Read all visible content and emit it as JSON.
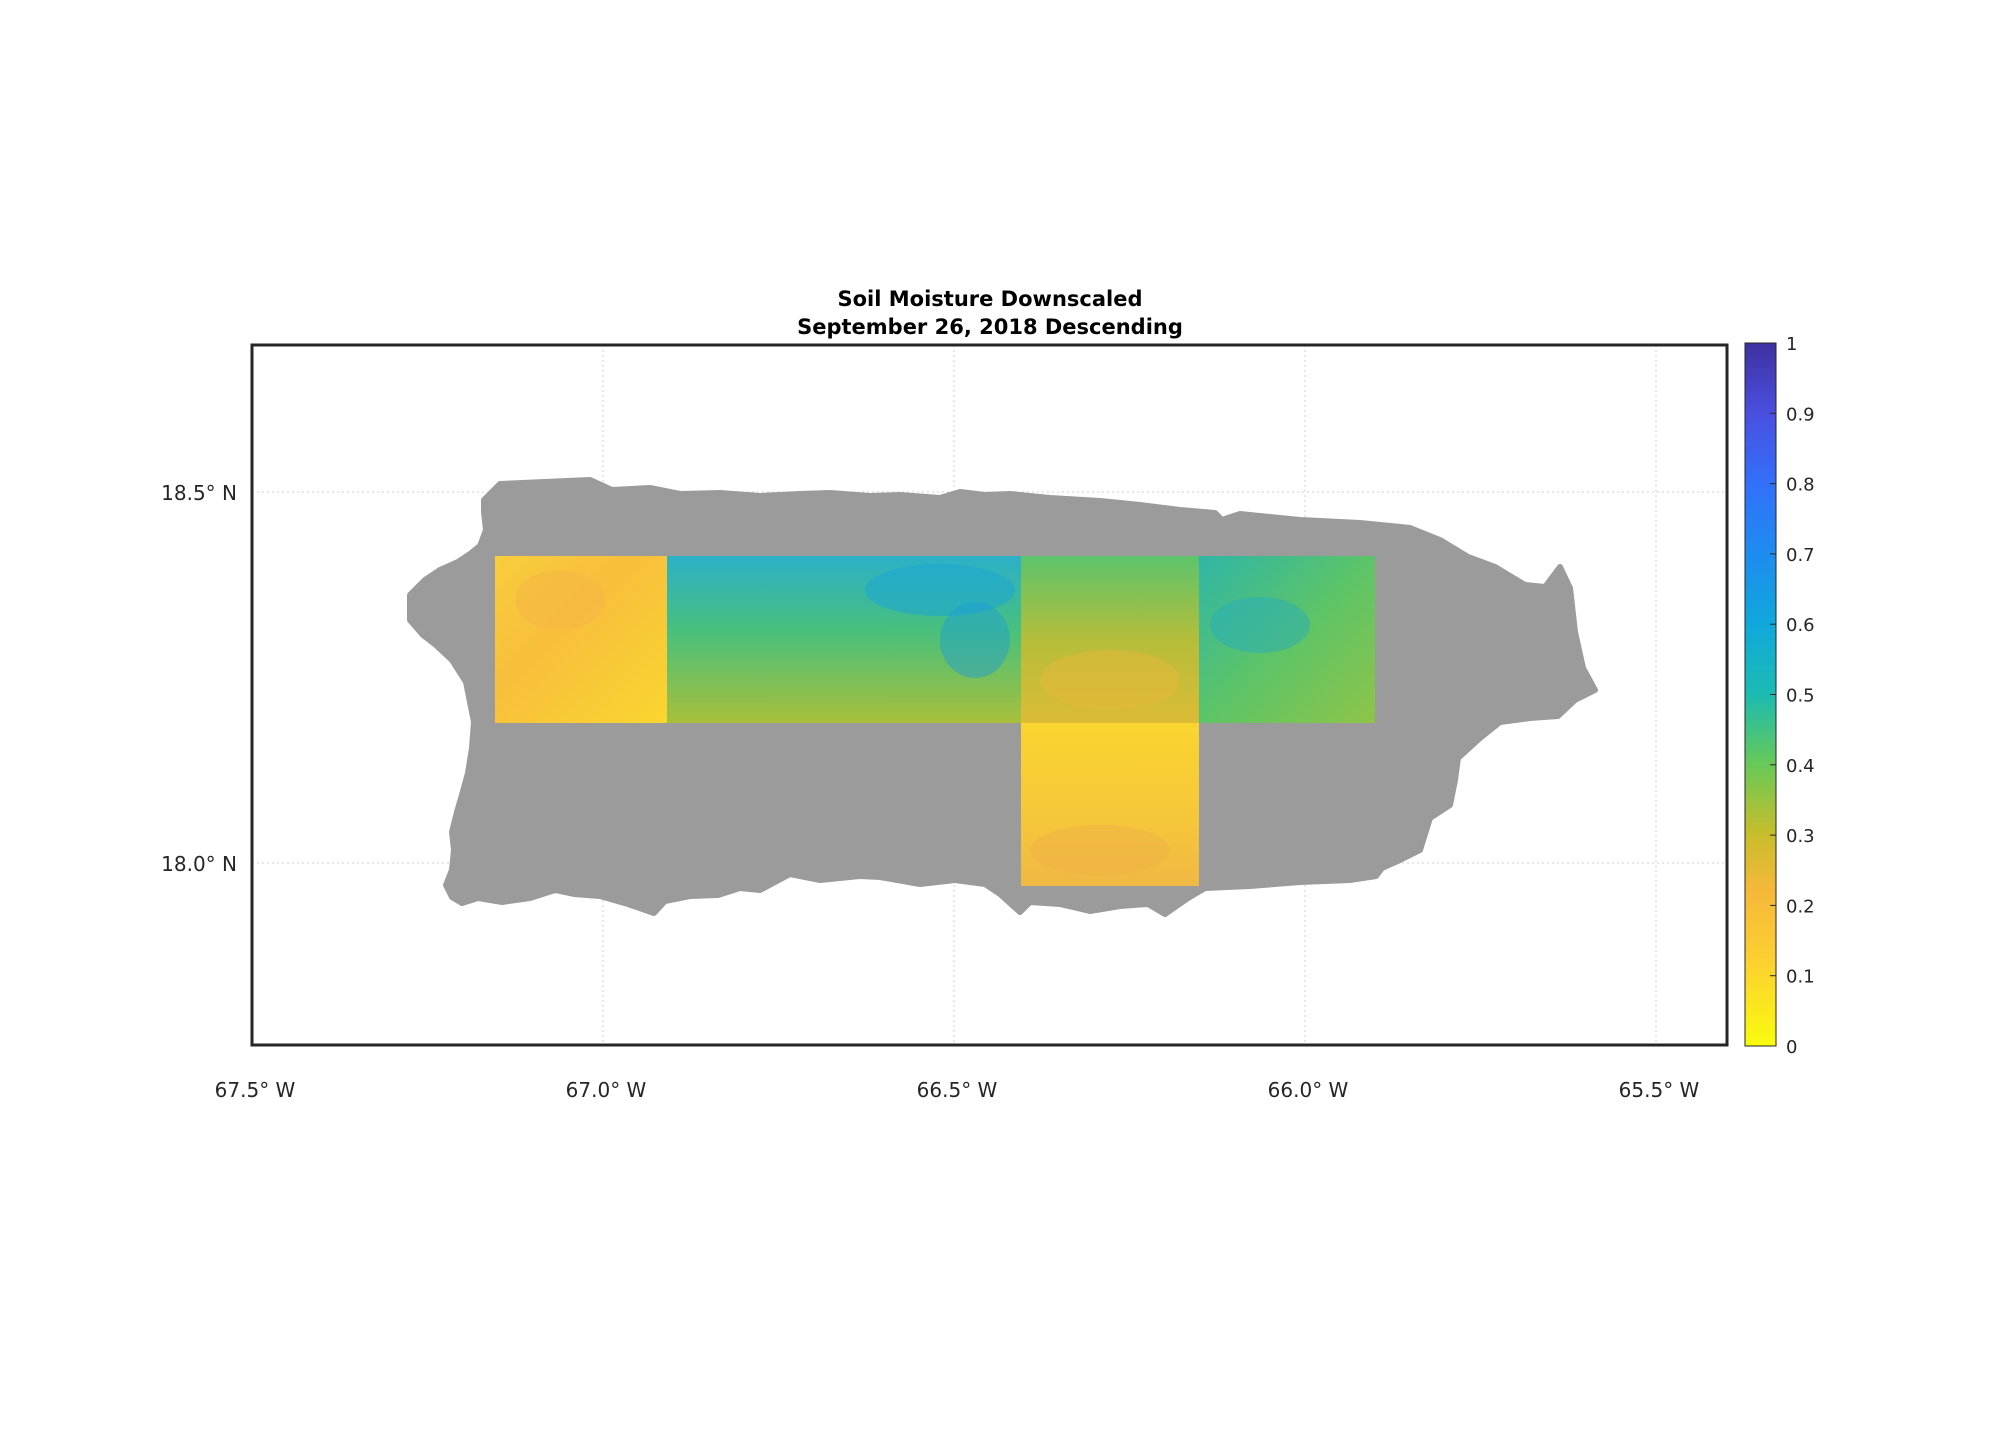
{
  "title": {
    "line1": "Soil Moisture Downscaled",
    "line2": "September 26, 2018 Descending"
  },
  "lon_ticks": [
    {
      "value": -67.5,
      "label": "67.5° W"
    },
    {
      "value": -67.0,
      "label": "67.0° W"
    },
    {
      "value": -66.5,
      "label": "66.5° W"
    },
    {
      "value": -66.0,
      "label": "66.0° W"
    },
    {
      "value": -65.5,
      "label": "65.5° W"
    }
  ],
  "lat_ticks": [
    {
      "value": 18.5,
      "label": "18.5° N"
    },
    {
      "value": 18.0,
      "label": "18.0° N"
    }
  ],
  "colorbar": {
    "min": 0,
    "max": 1,
    "tick_labels": [
      "0",
      "0.1",
      "0.2",
      "0.3",
      "0.4",
      "0.5",
      "0.6",
      "0.7",
      "0.8",
      "0.9",
      "1"
    ]
  },
  "map": {
    "lon_range": [
      -67.5,
      -65.4
    ],
    "lat_range": [
      17.73,
      18.7
    ],
    "grid": true,
    "land_color": "#9b9b9b",
    "no_data": "gray land outside retrieval tiles"
  },
  "chart_data": {
    "type": "heatmap",
    "variable": "soil moisture",
    "tiles": [
      {
        "lon": [
          -67.15,
          -66.91
        ],
        "lat": [
          18.19,
          18.42
        ],
        "mean_value": 0.15
      },
      {
        "lon": [
          -66.91,
          -66.4
        ],
        "lat": [
          18.19,
          18.42
        ],
        "mean_value": 0.45
      },
      {
        "lon": [
          -66.4,
          -66.15
        ],
        "lat": [
          18.19,
          18.42
        ],
        "mean_value": 0.3
      },
      {
        "lon": [
          -66.15,
          -65.9
        ],
        "lat": [
          18.19,
          18.42
        ],
        "mean_value": 0.4
      },
      {
        "lon": [
          -66.4,
          -66.15
        ],
        "lat": [
          17.97,
          18.19
        ],
        "mean_value": 0.15
      }
    ]
  }
}
